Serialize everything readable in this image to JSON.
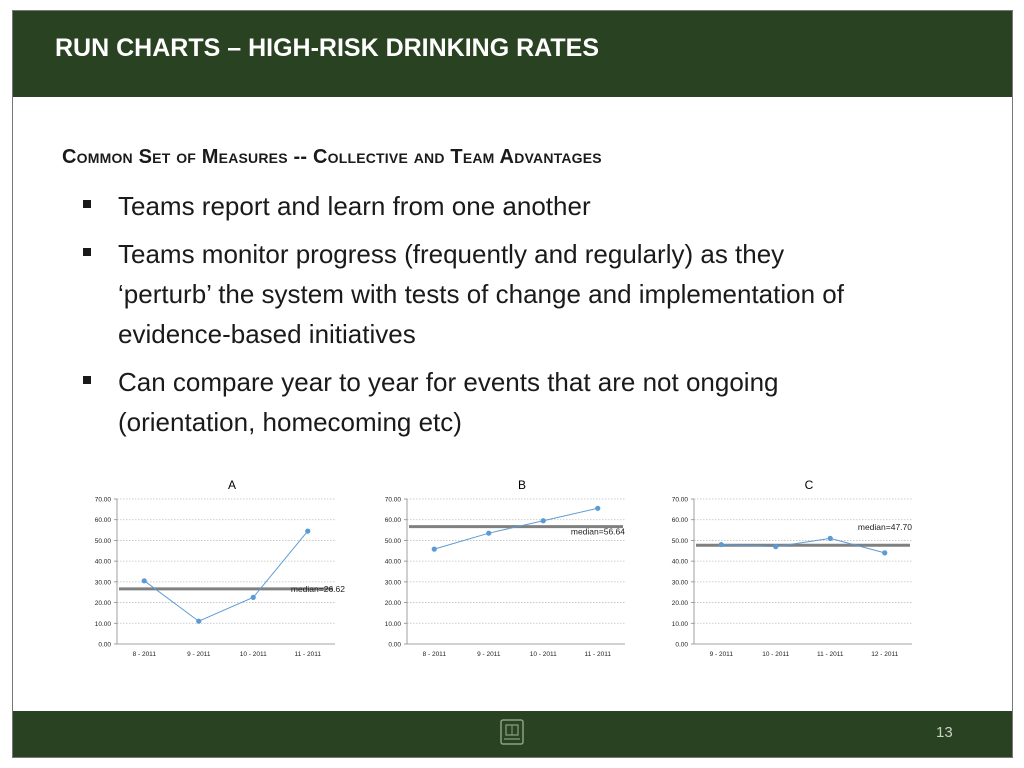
{
  "slide": {
    "title": "RUN CHARTS – HIGH-RISK DRINKING RATES",
    "subtitle": "Common Set of Measures -- Collective and Team Advantages",
    "bullets": [
      "Teams report and learn from one another",
      "Teams monitor progress (frequently and regularly) as they ‘perturb’ the system with tests of change and implementation of evidence-based initiatives",
      "Can compare year to year for events that are not ongoing (orientation, homecoming etc)"
    ],
    "page_number": "13",
    "logo_icon": "university-seal-icon"
  },
  "colors": {
    "bar": "#294221",
    "series": "#5b9bd5",
    "median": "#808080"
  },
  "chart_data": [
    {
      "type": "line",
      "title": "A",
      "categories": [
        "8 - 2011",
        "9 - 2011",
        "10 - 2011",
        "11 - 2011"
      ],
      "values": [
        30.5,
        11.0,
        22.5,
        54.5
      ],
      "median": 26.62,
      "median_label": "median=26.62",
      "ylim": [
        0,
        70
      ],
      "yticks": [
        "0.00",
        "10.00",
        "20.00",
        "30.00",
        "40.00",
        "50.00",
        "60.00",
        "70.00"
      ],
      "grid": true
    },
    {
      "type": "line",
      "title": "B",
      "categories": [
        "8 - 2011",
        "9 - 2011",
        "10 - 2011",
        "11 - 2011"
      ],
      "values": [
        45.8,
        53.5,
        59.5,
        65.5
      ],
      "median": 56.64,
      "median_label": "median=56.64",
      "ylim": [
        0,
        70
      ],
      "yticks": [
        "0.00",
        "10.00",
        "20.00",
        "30.00",
        "40.00",
        "50.00",
        "60.00",
        "70.00"
      ],
      "grid": true
    },
    {
      "type": "line",
      "title": "C",
      "categories": [
        "9 - 2011",
        "10 - 2011",
        "11 - 2011",
        "12 - 2011"
      ],
      "values": [
        48.0,
        47.0,
        51.0,
        44.0
      ],
      "median": 47.7,
      "median_label": "median=47.70",
      "ylim": [
        0,
        70
      ],
      "yticks": [
        "0.00",
        "10.00",
        "20.00",
        "30.00",
        "40.00",
        "50.00",
        "60.00",
        "70.00"
      ],
      "grid": true
    }
  ]
}
